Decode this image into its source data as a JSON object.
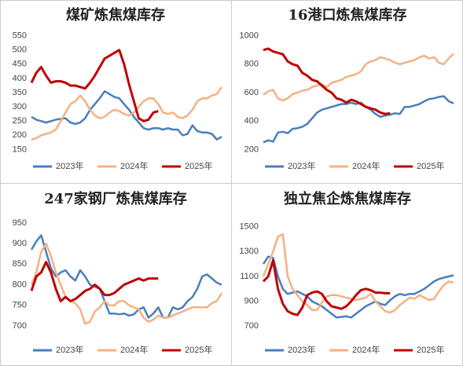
{
  "chart_data": [
    {
      "type": "line",
      "title": "煤矿炼焦煤库存",
      "ylim": [
        140,
        560
      ],
      "yticks": [
        150,
        200,
        250,
        300,
        350,
        400,
        450,
        500,
        550
      ],
      "series": [
        {
          "name": "2023年",
          "color": "#4a7ebb",
          "values": [
            265,
            255,
            250,
            245,
            250,
            255,
            258,
            260,
            245,
            240,
            245,
            260,
            290,
            310,
            330,
            355,
            345,
            335,
            330,
            310,
            290,
            265,
            245,
            225,
            220,
            225,
            225,
            220,
            225,
            220,
            220,
            200,
            205,
            235,
            215,
            210,
            210,
            205,
            185,
            195
          ]
        },
        {
          "name": "2024年",
          "color": "#f4b183",
          "values": [
            185,
            190,
            200,
            205,
            210,
            220,
            250,
            280,
            310,
            320,
            340,
            320,
            290,
            270,
            260,
            265,
            280,
            290,
            285,
            275,
            270,
            280,
            300,
            320,
            330,
            330,
            310,
            280,
            275,
            280,
            265,
            260,
            270,
            290,
            320,
            330,
            330,
            340,
            345,
            370
          ]
        },
        {
          "name": "2025年",
          "color": "#c00000",
          "values": [
            385,
            420,
            440,
            410,
            385,
            390,
            390,
            385,
            375,
            375,
            370,
            365,
            385,
            410,
            440,
            470,
            480,
            490,
            500,
            450,
            380,
            320,
            260,
            250,
            255,
            280,
            285,
            null,
            null,
            null,
            null,
            null,
            null,
            null,
            null,
            null,
            null,
            null,
            null,
            null
          ]
        }
      ]
    },
    {
      "type": "line",
      "title": "16港口炼焦煤库存",
      "ylim": [
        180,
        1020
      ],
      "yticks": [
        200,
        400,
        600,
        800,
        1000
      ],
      "series": [
        {
          "name": "2023年",
          "color": "#4a7ebb",
          "values": [
            250,
            265,
            255,
            320,
            325,
            315,
            345,
            350,
            360,
            380,
            420,
            460,
            480,
            490,
            500,
            510,
            520,
            520,
            530,
            520,
            530,
            500,
            480,
            450,
            430,
            440,
            445,
            455,
            450,
            500,
            500,
            510,
            520,
            540,
            555,
            560,
            570,
            575,
            540,
            525
          ]
        },
        {
          "name": "2024年",
          "color": "#f4b183",
          "values": [
            585,
            610,
            620,
            560,
            545,
            560,
            590,
            600,
            615,
            620,
            640,
            650,
            660,
            640,
            670,
            680,
            690,
            710,
            720,
            730,
            750,
            800,
            820,
            830,
            850,
            840,
            830,
            810,
            800,
            810,
            820,
            830,
            850,
            860,
            840,
            850,
            810,
            800,
            840,
            875
          ]
        },
        {
          "name": "2025年",
          "color": "#c00000",
          "values": [
            900,
            910,
            890,
            880,
            870,
            820,
            800,
            790,
            740,
            720,
            690,
            680,
            650,
            620,
            600,
            560,
            550,
            530,
            550,
            540,
            520,
            500,
            490,
            480,
            460,
            450,
            455,
            null,
            null,
            null,
            null,
            null,
            null,
            null,
            null,
            null,
            null,
            null,
            null,
            null
          ]
        }
      ]
    },
    {
      "type": "line",
      "title": "247家钢厂炼焦煤库存",
      "ylim": [
        675,
        965
      ],
      "yticks": [
        700,
        750,
        800,
        850,
        900,
        950
      ],
      "series": [
        {
          "name": "2023年",
          "color": "#4a7ebb",
          "values": [
            885,
            905,
            920,
            880,
            840,
            820,
            830,
            835,
            820,
            810,
            835,
            820,
            800,
            795,
            790,
            760,
            730,
            730,
            728,
            730,
            725,
            728,
            740,
            745,
            720,
            730,
            745,
            720,
            720,
            745,
            740,
            745,
            760,
            770,
            790,
            820,
            825,
            815,
            805,
            800
          ]
        },
        {
          "name": "2024年",
          "color": "#f4b183",
          "values": [
            800,
            830,
            880,
            900,
            870,
            830,
            800,
            770,
            760,
            755,
            740,
            705,
            710,
            735,
            745,
            760,
            750,
            750,
            760,
            760,
            750,
            745,
            740,
            720,
            710,
            715,
            725,
            720,
            720,
            725,
            730,
            735,
            740,
            745,
            745,
            745,
            745,
            755,
            760,
            780
          ]
        },
        {
          "name": "2025年",
          "color": "#c00000",
          "values": [
            785,
            820,
            830,
            855,
            830,
            790,
            760,
            770,
            760,
            765,
            775,
            785,
            790,
            800,
            790,
            775,
            775,
            780,
            790,
            800,
            805,
            810,
            815,
            810,
            815,
            815,
            815,
            null,
            null,
            null,
            null,
            null,
            null,
            null,
            null,
            null,
            null,
            null,
            null,
            null
          ]
        }
      ]
    },
    {
      "type": "line",
      "title": "独立焦企炼焦煤库存",
      "ylim": [
        620,
        1580
      ],
      "yticks": [
        700,
        900,
        1100,
        1300,
        1500
      ],
      "series": [
        {
          "name": "2023年",
          "color": "#4a7ebb",
          "values": [
            1200,
            1260,
            1250,
            1100,
            1000,
            960,
            970,
            980,
            960,
            940,
            900,
            880,
            860,
            830,
            800,
            770,
            775,
            780,
            770,
            800,
            830,
            860,
            880,
            900,
            880,
            870,
            910,
            940,
            960,
            950,
            960,
            960,
            980,
            1000,
            1030,
            1060,
            1080,
            1090,
            1100,
            1110
          ]
        },
        {
          "name": "2024年",
          "color": "#f4b183",
          "values": [
            1100,
            1200,
            1300,
            1420,
            1440,
            1100,
            1000,
            950,
            900,
            870,
            830,
            830,
            890,
            940,
            950,
            950,
            940,
            930,
            920,
            910,
            920,
            930,
            960,
            900,
            860,
            820,
            810,
            830,
            870,
            900,
            930,
            920,
            950,
            930,
            910,
            920,
            980,
            1030,
            1060,
            1050
          ]
        },
        {
          "name": "2025年",
          "color": "#c00000",
          "values": [
            1060,
            1100,
            1230,
            1000,
            880,
            820,
            800,
            790,
            850,
            950,
            970,
            980,
            960,
            900,
            860,
            850,
            840,
            860,
            900,
            950,
            990,
            1000,
            990,
            970,
            970,
            965,
            965,
            null,
            null,
            null,
            null,
            null,
            null,
            null,
            null,
            null,
            null,
            null,
            null,
            null
          ]
        }
      ]
    }
  ]
}
